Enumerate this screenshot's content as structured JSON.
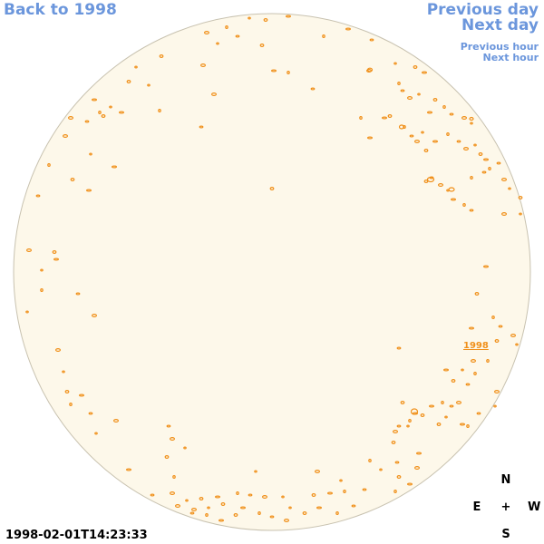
{
  "nav": {
    "back_label": "Back to 1998",
    "prev_day_label": "Previous day",
    "next_day_label": "Next day",
    "prev_hour_label": "Previous hour",
    "next_hour_label": "Next hour"
  },
  "timestamp": "1998-02-01T14:23:33",
  "compass": {
    "north": "N",
    "east": "E",
    "center": "+",
    "west": "W",
    "south": "S"
  },
  "region_label": "1998",
  "colors": {
    "disk_fill": "#fdf8ea",
    "disk_outline": "#c8c2b0",
    "contour": "#f0901a",
    "nav_link": "#6b96dc",
    "text": "#000000"
  }
}
